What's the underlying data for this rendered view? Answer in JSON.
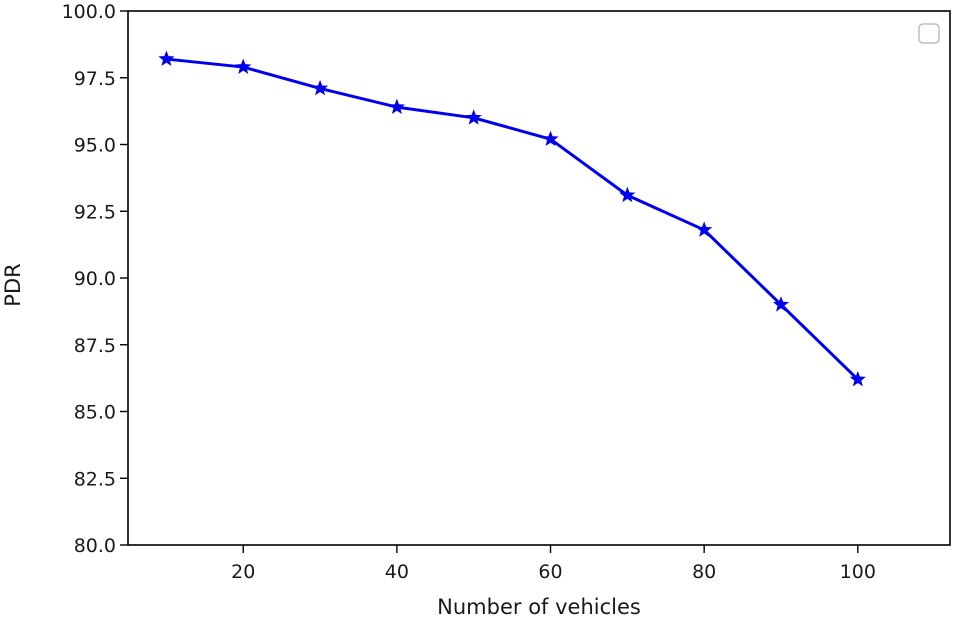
{
  "chart_data": {
    "type": "line",
    "title": "",
    "xlabel": "Number of vehicles",
    "ylabel": "PDR",
    "xlim": [
      5,
      112
    ],
    "ylim": [
      80.0,
      100.0
    ],
    "x_ticks": [
      20,
      40,
      60,
      80,
      100
    ],
    "x_tick_labels": [
      "20",
      "40",
      "60",
      "80",
      "100"
    ],
    "y_ticks": [
      80.0,
      82.5,
      85.0,
      87.5,
      90.0,
      92.5,
      95.0,
      97.5,
      100.0
    ],
    "y_tick_labels": [
      "80.0",
      "82.5",
      "85.0",
      "87.5",
      "90.0",
      "92.5",
      "95.0",
      "97.5",
      "100.0"
    ],
    "grid": false,
    "legend": {
      "placement": "top-right",
      "entries": []
    },
    "series": [
      {
        "color": "#0000ee",
        "marker": "star",
        "x": [
          10,
          20,
          30,
          40,
          50,
          60,
          70,
          80,
          90,
          100
        ],
        "y": [
          98.2,
          97.9,
          97.1,
          96.4,
          96.0,
          95.2,
          93.1,
          91.8,
          89.0,
          86.2
        ]
      }
    ]
  }
}
